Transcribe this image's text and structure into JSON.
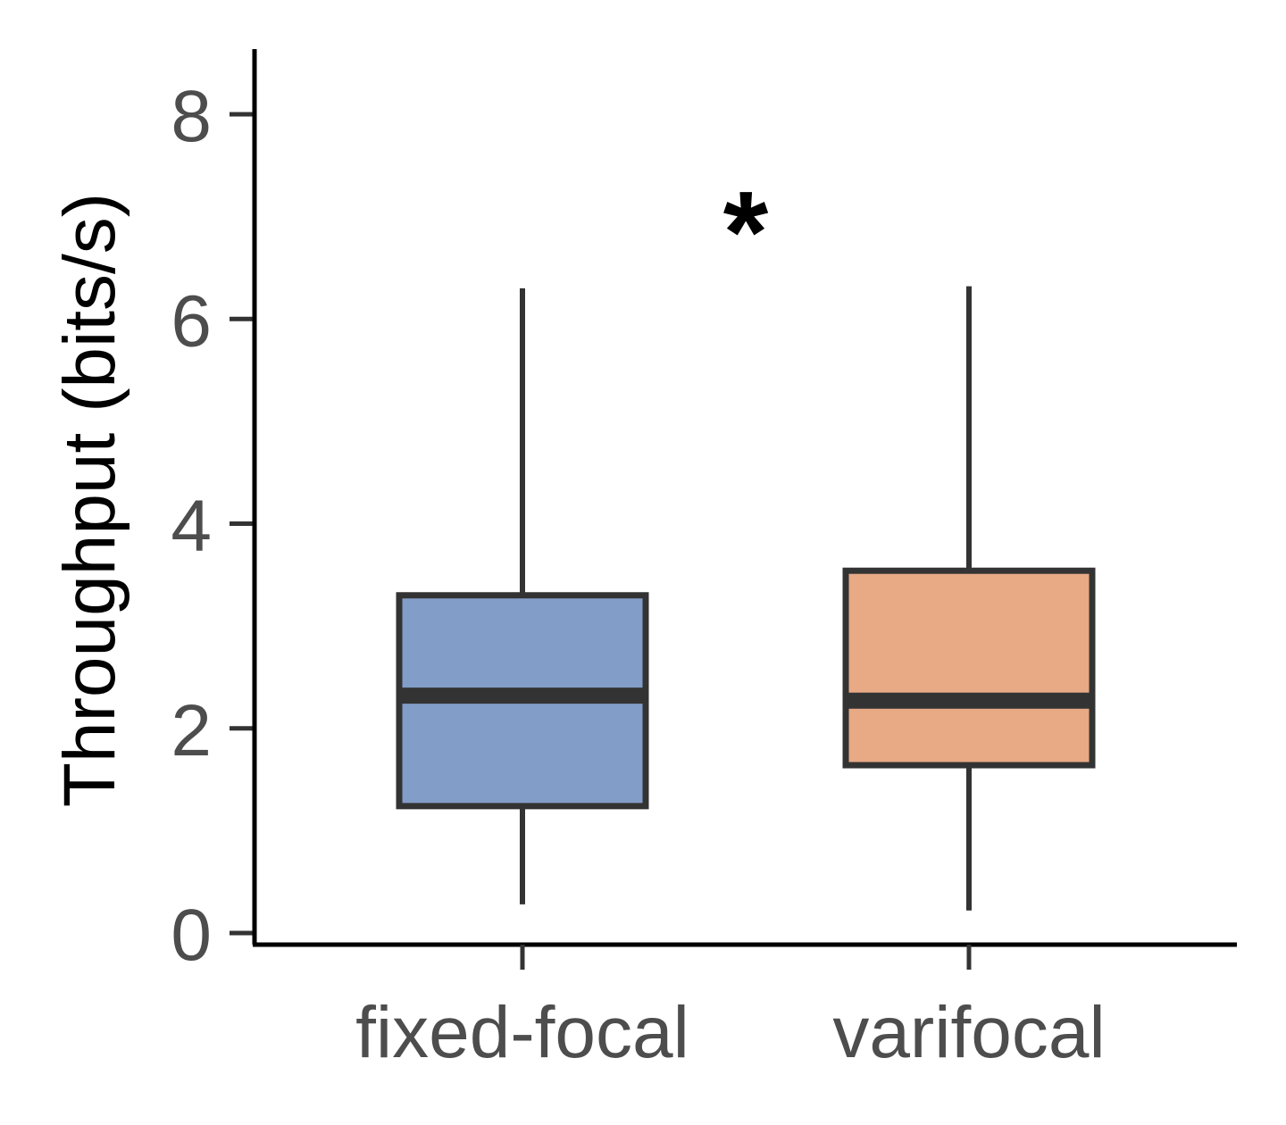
{
  "chart_data": {
    "type": "box",
    "title": "",
    "xlabel": "",
    "ylabel": "Throughput (bits/s)",
    "ylim": [
      -0.1,
      8.6
    ],
    "yticks": [
      0,
      2,
      4,
      6,
      8
    ],
    "categories": [
      "fixed-focal",
      "varifocal"
    ],
    "boxes": [
      {
        "name": "fixed-focal",
        "whisker_low": 0.28,
        "q1": 1.24,
        "median": 2.32,
        "q3": 3.3,
        "whisker_high": 6.3,
        "color": "#829dc7"
      },
      {
        "name": "varifocal",
        "whisker_low": 0.22,
        "q1": 1.64,
        "median": 2.27,
        "q3": 3.54,
        "whisker_high": 6.32,
        "color": "#e8a985"
      }
    ],
    "annotation": {
      "text": "*",
      "x_between": [
        "fixed-focal",
        "varifocal"
      ],
      "y": 7.0
    },
    "colors": {
      "axis": "#000000",
      "box_edge": "#333333",
      "tick_label": "#4d4d4d"
    }
  }
}
